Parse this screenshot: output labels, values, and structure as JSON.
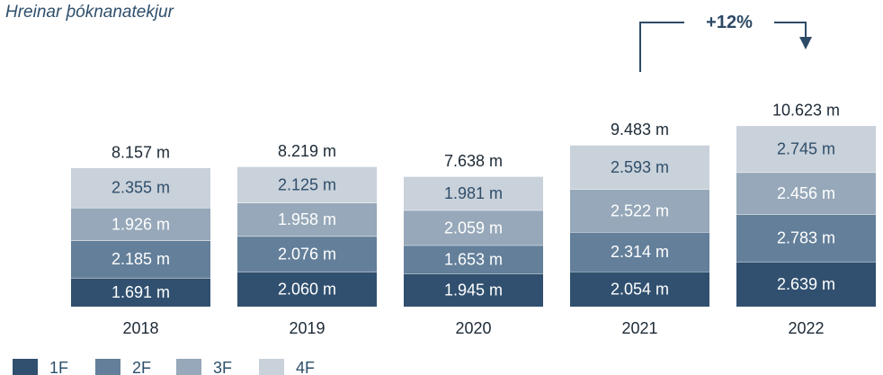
{
  "chart_data": {
    "type": "bar",
    "stacked": true,
    "title": "Hreinar þóknanatekjur",
    "categories": [
      "2018",
      "2019",
      "2020",
      "2021",
      "2022"
    ],
    "series": [
      {
        "name": "1F",
        "color": "#31506f",
        "values": [
          1.691,
          2.06,
          1.945,
          2.054,
          2.639
        ],
        "labels": [
          "1.691 m",
          "2.060 m",
          "1.945 m",
          "2.054 m",
          "2.639 m"
        ]
      },
      {
        "name": "2F",
        "color": "#637f9a",
        "values": [
          2.185,
          2.076,
          1.653,
          2.314,
          2.783
        ],
        "labels": [
          "2.185 m",
          "2.076 m",
          "1.653 m",
          "2.314 m",
          "2.783 m"
        ]
      },
      {
        "name": "3F",
        "color": "#96a8b9",
        "values": [
          1.926,
          1.958,
          2.059,
          2.522,
          2.456
        ],
        "labels": [
          "1.926 m",
          "1.958 m",
          "2.059 m",
          "2.522 m",
          "2.456 m"
        ]
      },
      {
        "name": "4F",
        "color": "#c9d1da",
        "values": [
          2.355,
          2.125,
          1.981,
          2.593,
          2.745
        ],
        "labels": [
          "2.355 m",
          "2.125 m",
          "1.981 m",
          "2.593 m",
          "2.745 m"
        ]
      }
    ],
    "totals": [
      8.157,
      8.219,
      7.638,
      9.483,
      10.623
    ],
    "total_labels": [
      "8.157 m",
      "8.219 m",
      "7.638 m",
      "9.483 m",
      "10.623 m"
    ],
    "annotation": {
      "text": "+12%",
      "from": "2021",
      "to": "2022"
    },
    "legend_position": "bottom-left",
    "grid": false
  }
}
